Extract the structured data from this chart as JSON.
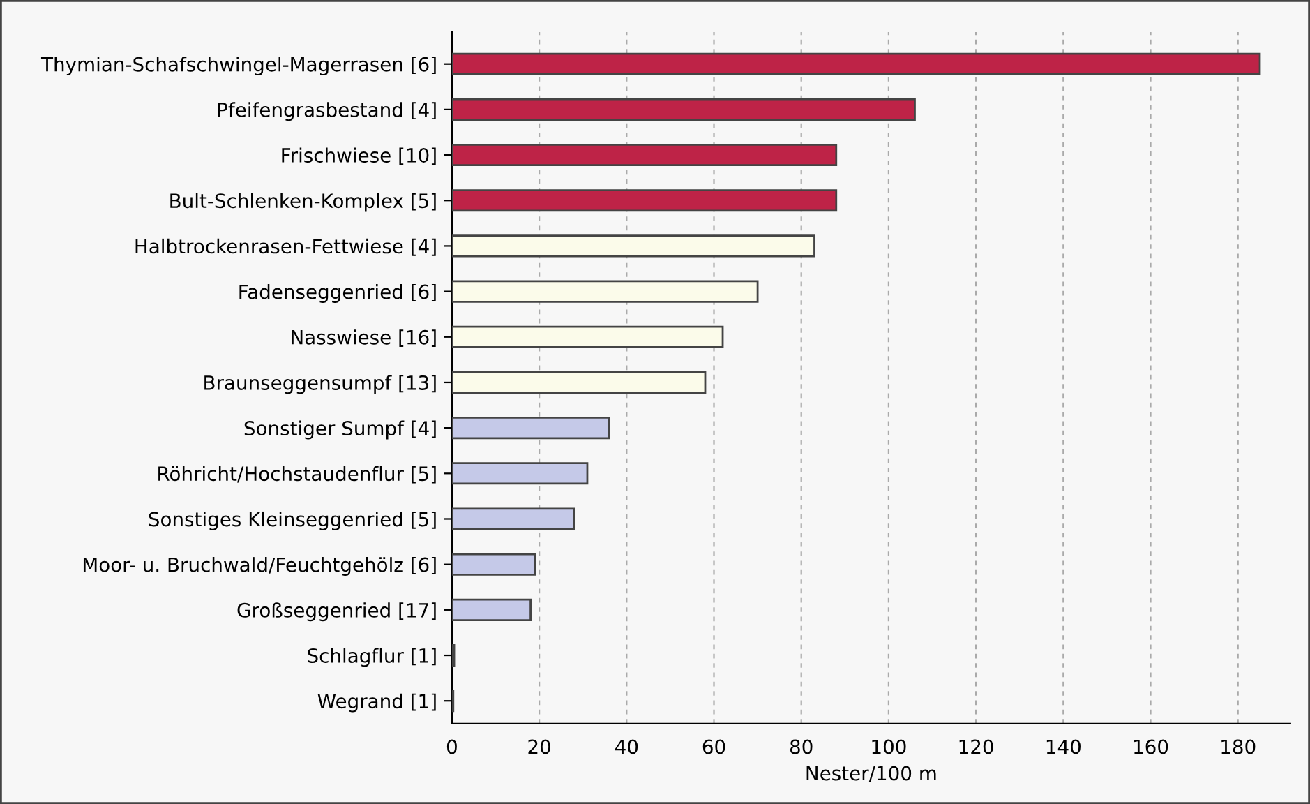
{
  "chart_data": {
    "type": "bar",
    "orientation": "horizontal",
    "xlabel": "Nester/100 m",
    "categories": [
      "Thymian-Schafschwingel-Magerrasen [6]",
      "Pfeifengrasbestand [4]",
      "Frischwiese [10]",
      "Bult-Schlenken-Komplex [5]",
      "Halbtrockenrasen-Fettwiese [4]",
      "Fadenseggenried [6]",
      "Nasswiese [16]",
      "Braunseggensumpf [13]",
      "Sonstiger Sumpf [4]",
      "Röhricht/Hochstaudenflur [5]",
      "Sonstiges Kleinseggenried [5]",
      "Moor- u. Bruchwald/Feuchtgehölz [6]",
      "Großseggenried [17]",
      "Schlagflur [1]",
      "Wegrand [1]"
    ],
    "values": [
      185,
      106,
      88,
      88,
      83,
      70,
      62,
      58,
      36,
      31,
      28,
      19,
      18,
      0.5,
      0.3
    ],
    "colors": [
      "#be2347",
      "#be2347",
      "#be2347",
      "#be2347",
      "#fbfbea",
      "#fbfbea",
      "#fbfbea",
      "#fbfbea",
      "#c5c9e8",
      "#c5c9e8",
      "#c5c9e8",
      "#c5c9e8",
      "#c5c9e8",
      "#c5c9e8",
      "#c5c9e8"
    ],
    "xlim": [
      0,
      192
    ],
    "xticks": [
      0,
      20,
      40,
      60,
      80,
      100,
      120,
      140,
      160,
      180
    ],
    "grid": "x",
    "legend": false
  }
}
